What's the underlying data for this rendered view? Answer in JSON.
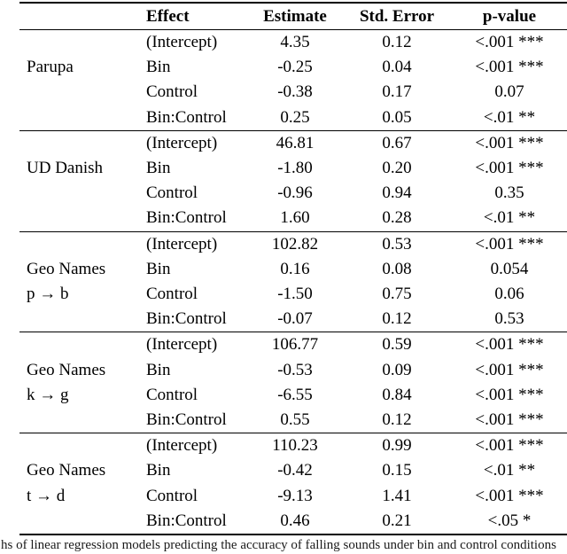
{
  "table": {
    "columns": [
      "Effect",
      "Estimate",
      "Std. Error",
      "p-value"
    ],
    "groups": [
      {
        "label_lines": [
          "Parupa"
        ],
        "rows": [
          {
            "effect": "(Intercept)",
            "estimate": "4.35",
            "std_error": "0.12",
            "p_value": "<.001 ***"
          },
          {
            "effect": "Bin",
            "estimate": "-0.25",
            "std_error": "0.04",
            "p_value": "<.001 ***"
          },
          {
            "effect": "Control",
            "estimate": "-0.38",
            "std_error": "0.17",
            "p_value": "0.07"
          },
          {
            "effect": "Bin:Control",
            "estimate": "0.25",
            "std_error": "0.05",
            "p_value": "<.01 **"
          }
        ]
      },
      {
        "label_lines": [
          "UD Danish"
        ],
        "rows": [
          {
            "effect": "(Intercept)",
            "estimate": "46.81",
            "std_error": "0.67",
            "p_value": "<.001 ***"
          },
          {
            "effect": "Bin",
            "estimate": "-1.80",
            "std_error": "0.20",
            "p_value": "<.001 ***"
          },
          {
            "effect": "Control",
            "estimate": "-0.96",
            "std_error": "0.94",
            "p_value": "0.35"
          },
          {
            "effect": "Bin:Control",
            "estimate": "1.60",
            "std_error": "0.28",
            "p_value": "<.01 **"
          }
        ]
      },
      {
        "label_lines": [
          "Geo Names",
          "p → b"
        ],
        "rows": [
          {
            "effect": "(Intercept)",
            "estimate": "102.82",
            "std_error": "0.53",
            "p_value": "<.001 ***"
          },
          {
            "effect": "Bin",
            "estimate": "0.16",
            "std_error": "0.08",
            "p_value": "0.054"
          },
          {
            "effect": "Control",
            "estimate": "-1.50",
            "std_error": "0.75",
            "p_value": "0.06"
          },
          {
            "effect": "Bin:Control",
            "estimate": "-0.07",
            "std_error": "0.12",
            "p_value": "0.53"
          }
        ]
      },
      {
        "label_lines": [
          "Geo Names",
          "k → g"
        ],
        "rows": [
          {
            "effect": "(Intercept)",
            "estimate": "106.77",
            "std_error": "0.59",
            "p_value": "<.001 ***"
          },
          {
            "effect": "Bin",
            "estimate": "-0.53",
            "std_error": "0.09",
            "p_value": "<.001 ***"
          },
          {
            "effect": "Control",
            "estimate": "-6.55",
            "std_error": "0.84",
            "p_value": "<.001 ***"
          },
          {
            "effect": "Bin:Control",
            "estimate": "0.55",
            "std_error": "0.12",
            "p_value": "<.001 ***"
          }
        ]
      },
      {
        "label_lines": [
          "Geo Names",
          "t → d"
        ],
        "rows": [
          {
            "effect": "(Intercept)",
            "estimate": "110.23",
            "std_error": "0.99",
            "p_value": "<.001 ***"
          },
          {
            "effect": "Bin",
            "estimate": "-0.42",
            "std_error": "0.15",
            "p_value": "<.01 **"
          },
          {
            "effect": "Control",
            "estimate": "-9.13",
            "std_error": "1.41",
            "p_value": "<.001 ***"
          },
          {
            "effect": "Bin:Control",
            "estimate": "0.46",
            "std_error": "0.21",
            "p_value": "<.05 *"
          }
        ]
      }
    ]
  },
  "caption_partial": "hs of linear regression models predicting the accuracy of falling sounds under bin and control conditions"
}
